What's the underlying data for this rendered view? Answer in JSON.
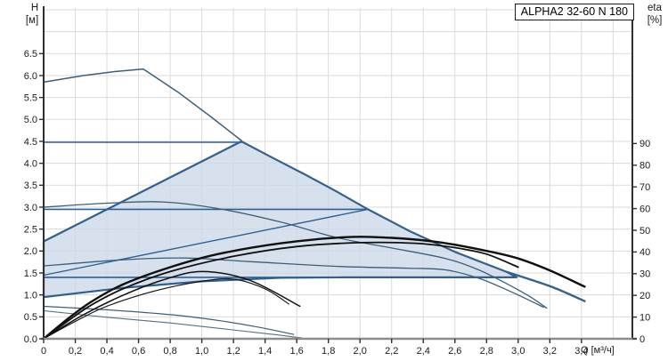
{
  "title_box": {
    "label": "ALPHA2 32-60 N 180"
  },
  "axis_labels": {
    "left_1": "H",
    "left_2": "[м]",
    "right_1": "eta",
    "right_2": "[%]",
    "bottom": "Q [м³/ч]"
  },
  "colors": {
    "grid": "#dadada",
    "axis_side": "#2f2f2f",
    "axis_bottom": "#8c8c8c",
    "tick": "#2f2f2f",
    "region_fill": "#ccd9e8",
    "region_border": "#35618c",
    "blue_line": "#2e6093",
    "slate_line": "#3c5f78",
    "gray_slate": "#54707f",
    "black_curve": "#101010"
  },
  "chart_data": {
    "type": "line",
    "title": "ALPHA2 32-60 N 180",
    "xlabel": "Q [м³/ч]",
    "ylabel_left": "H [м]",
    "ylabel_right": "eta [%]",
    "x_axis": {
      "min": 0,
      "max": 3.72,
      "tick_values": [
        0,
        0.2,
        0.4,
        0.6,
        0.8,
        1.0,
        1.2,
        1.4,
        1.6,
        1.8,
        2.0,
        2.2,
        2.4,
        2.6,
        2.8,
        3.0,
        3.2,
        3.4
      ],
      "tick_labels": [
        "0",
        "0,2",
        "0,4",
        "0,6",
        "0,8",
        "1,0",
        "1,2",
        "1,4",
        "1,6",
        "1,8",
        "2,0",
        "2,2",
        "2,4",
        "2,6",
        "2,8",
        "3,0",
        "3,2",
        "3,4"
      ],
      "grid_values": [
        0.2,
        0.4,
        0.6,
        0.8,
        1.0,
        1.2,
        1.4,
        1.6,
        1.8,
        2.0,
        2.2,
        2.4,
        2.6,
        2.8,
        3.0,
        3.2,
        3.4,
        3.6
      ]
    },
    "y_left": {
      "min": 0,
      "max": 7.58,
      "tick_values": [
        0,
        0.5,
        1.0,
        1.5,
        2.0,
        2.5,
        3.0,
        3.5,
        4.0,
        4.5,
        5.0,
        5.5,
        6.0,
        6.5
      ],
      "tick_labels": [
        "0.0",
        "0.5",
        "1.0",
        "1.5",
        "2.0",
        "2.5",
        "3.0",
        "3.5",
        "4.0",
        "4.5",
        "5.0",
        "5.5",
        "6.0",
        "6.5"
      ],
      "grid_values": [
        0.5,
        1.0,
        1.5,
        2.0,
        2.5,
        3.0,
        3.5,
        4.0,
        4.5,
        5.0,
        5.5,
        6.0,
        6.5,
        7.0,
        7.5
      ]
    },
    "y_right": {
      "min": 0,
      "max": 92,
      "tick_values": [
        0,
        10,
        20,
        30,
        40,
        50,
        60,
        70,
        80,
        90
      ],
      "tick_labels": [
        "0",
        "10",
        "20",
        "30",
        "40",
        "50",
        "60",
        "70",
        "80",
        "90"
      ]
    },
    "region": {
      "name": "control-range",
      "points": [
        [
          0,
          2.22
        ],
        [
          1.25,
          4.5
        ],
        [
          1.45,
          4.12
        ],
        [
          1.65,
          3.75
        ],
        [
          1.85,
          3.36
        ],
        [
          2.05,
          2.95
        ],
        [
          2.31,
          2.46
        ],
        [
          2.6,
          1.98
        ],
        [
          2.93,
          1.52
        ],
        [
          2.99,
          1.4
        ],
        [
          1.9,
          1.4
        ],
        [
          1.5,
          1.39
        ],
        [
          1.0,
          1.31
        ],
        [
          0.5,
          1.16
        ],
        [
          0,
          0.95
        ]
      ]
    },
    "series": [
      {
        "name": "pp3-line",
        "axis": "H",
        "color_key": "blue_line",
        "width": 1.4,
        "smooth": false,
        "points": [
          [
            0,
            2.22
          ],
          [
            1.25,
            4.5
          ]
        ]
      },
      {
        "name": "cp3-line",
        "axis": "H",
        "color_key": "blue_line",
        "width": 1.6,
        "smooth": false,
        "points": [
          [
            0,
            4.48
          ],
          [
            1.26,
            4.48
          ]
        ]
      },
      {
        "name": "pp2-line",
        "axis": "H",
        "color_key": "blue_line",
        "width": 1.4,
        "smooth": false,
        "points": [
          [
            0,
            1.45
          ],
          [
            2.05,
            2.95
          ]
        ]
      },
      {
        "name": "cp2-line",
        "axis": "H",
        "color_key": "blue_line",
        "width": 1.6,
        "smooth": false,
        "points": [
          [
            0,
            2.95
          ],
          [
            2.05,
            2.95
          ]
        ]
      },
      {
        "name": "pp1-line",
        "axis": "H",
        "color_key": "blue_line",
        "width": 1.4,
        "smooth": true,
        "points": [
          [
            0,
            0.95
          ],
          [
            0.5,
            1.16
          ],
          [
            1.0,
            1.31
          ],
          [
            1.5,
            1.39
          ],
          [
            1.9,
            1.4
          ]
        ]
      },
      {
        "name": "cp1-line",
        "axis": "H",
        "color_key": "blue_line",
        "width": 1.6,
        "smooth": false,
        "points": [
          [
            0,
            1.4
          ],
          [
            2.97,
            1.4
          ]
        ]
      },
      {
        "name": "speed-iii-curve",
        "axis": "H",
        "color_key": "slate_line",
        "width": 1.3,
        "smooth": true,
        "points": [
          [
            0,
            3.0
          ],
          [
            0.4,
            3.09
          ],
          [
            0.75,
            3.12
          ],
          [
            1.1,
            2.97
          ],
          [
            1.5,
            2.66
          ],
          [
            1.86,
            2.3
          ],
          [
            2.2,
            2.07
          ],
          [
            2.54,
            1.83
          ],
          [
            2.75,
            1.57
          ],
          [
            2.93,
            1.25
          ],
          [
            3.07,
            0.97
          ],
          [
            3.18,
            0.7
          ]
        ]
      },
      {
        "name": "speed-ii-curve",
        "axis": "H",
        "color_key": "slate_line",
        "width": 1.3,
        "smooth": true,
        "points": [
          [
            0,
            1.66
          ],
          [
            0.5,
            1.8
          ],
          [
            0.9,
            1.84
          ],
          [
            1.3,
            1.76
          ],
          [
            1.86,
            1.65
          ],
          [
            2.3,
            1.61
          ],
          [
            2.54,
            1.57
          ],
          [
            2.75,
            1.38
          ],
          [
            2.95,
            1.08
          ],
          [
            3.16,
            0.72
          ]
        ]
      },
      {
        "name": "speed-i-curve",
        "axis": "H",
        "color_key": "slate_line",
        "width": 1.2,
        "smooth": true,
        "points": [
          [
            0,
            0.74
          ],
          [
            0.4,
            0.66
          ],
          [
            0.8,
            0.55
          ],
          [
            1.1,
            0.42
          ],
          [
            1.35,
            0.27
          ],
          [
            1.58,
            0.1
          ]
        ]
      },
      {
        "name": "min-speed-curve",
        "axis": "H",
        "color_key": "gray_slate",
        "width": 1.1,
        "smooth": true,
        "points": [
          [
            0,
            0.64
          ],
          [
            0.4,
            0.49
          ],
          [
            0.8,
            0.36
          ],
          [
            1.15,
            0.22
          ],
          [
            1.45,
            0.1
          ],
          [
            1.63,
            0.02
          ]
        ]
      },
      {
        "name": "max-speed-curve-top",
        "axis": "H",
        "color_key": "slate_line",
        "width": 1.5,
        "smooth": false,
        "points": [
          [
            0,
            5.85
          ],
          [
            0.25,
            6.0
          ],
          [
            0.45,
            6.09
          ],
          [
            0.63,
            6.15
          ],
          [
            0.85,
            5.62
          ],
          [
            1.05,
            5.08
          ],
          [
            1.25,
            4.52
          ]
        ]
      },
      {
        "name": "max-speed-curve-ext",
        "axis": "H",
        "color_key": "region_border",
        "width": 2.4,
        "smooth": true,
        "points": [
          [
            2.93,
            1.52
          ],
          [
            3.2,
            1.2
          ],
          [
            3.42,
            0.86
          ]
        ]
      },
      {
        "name": "eta-speed-ii-b-curve",
        "axis": "eta",
        "color_key": "black_curve",
        "width": 1.1,
        "smooth": true,
        "points": [
          [
            0,
            0
          ],
          [
            0.2,
            8
          ],
          [
            0.4,
            15
          ],
          [
            0.7,
            22
          ],
          [
            1.0,
            26.5
          ],
          [
            1.2,
            27.5
          ],
          [
            1.4,
            23
          ],
          [
            1.55,
            16
          ]
        ]
      },
      {
        "name": "eta-speed-ii-curve",
        "axis": "eta",
        "color_key": "black_curve",
        "width": 1.5,
        "smooth": true,
        "points": [
          [
            0,
            0
          ],
          [
            0.25,
            11
          ],
          [
            0.5,
            20
          ],
          [
            0.75,
            27
          ],
          [
            1.0,
            31
          ],
          [
            1.3,
            27
          ],
          [
            1.62,
            15
          ]
        ]
      },
      {
        "name": "eta-speed-iii-curve",
        "axis": "eta",
        "color_key": "black_curve",
        "width": 1.8,
        "smooth": true,
        "points": [
          [
            0,
            0
          ],
          [
            0.15,
            8
          ],
          [
            0.3,
            15.5
          ],
          [
            0.5,
            23
          ],
          [
            0.8,
            31
          ],
          [
            1.2,
            38
          ],
          [
            1.6,
            42.5
          ],
          [
            2.0,
            44.3
          ],
          [
            2.35,
            44
          ],
          [
            2.6,
            42
          ],
          [
            2.8,
            39
          ],
          [
            3.0,
            33
          ]
        ]
      },
      {
        "name": "eta-max-curve",
        "axis": "eta",
        "color_key": "black_curve",
        "width": 2.4,
        "smooth": true,
        "points": [
          [
            0,
            0
          ],
          [
            0.15,
            9
          ],
          [
            0.3,
            17
          ],
          [
            0.5,
            25
          ],
          [
            0.8,
            33
          ],
          [
            1.1,
            39
          ],
          [
            1.5,
            44
          ],
          [
            1.9,
            46.8
          ],
          [
            2.2,
            46.5
          ],
          [
            2.5,
            44.5
          ],
          [
            2.8,
            40.5
          ],
          [
            3.0,
            37
          ],
          [
            3.2,
            31.5
          ],
          [
            3.42,
            24
          ]
        ]
      }
    ]
  }
}
